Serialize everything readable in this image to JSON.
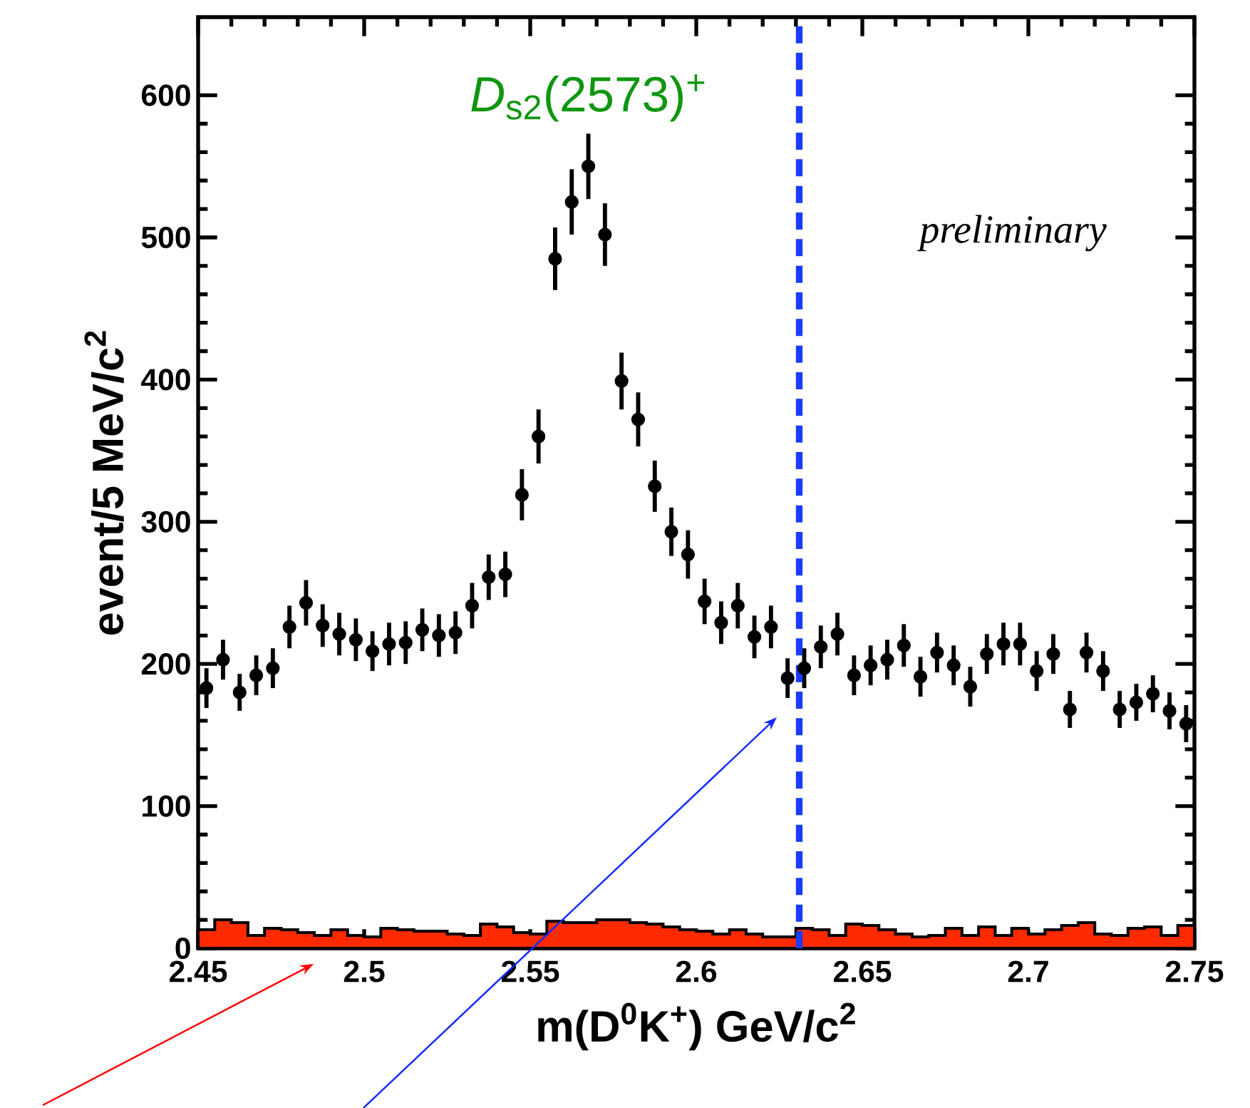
{
  "chart_data": {
    "type": "histogram",
    "xlabel": "m(D$^{0}$K$^{+}$) GeV/c$^{2}$",
    "ylabel": "event/5 MeV/c$^{2}$",
    "xlim": [
      2.45,
      2.75
    ],
    "ylim": [
      0,
      655
    ],
    "xticks": [
      2.45,
      2.5,
      2.55,
      2.6,
      2.65,
      2.7,
      2.75
    ],
    "yticks": [
      0,
      100,
      200,
      300,
      400,
      500,
      600
    ],
    "annotations": [
      {
        "text": "*D*$_{s2}$(2573)$^{+}$",
        "x": 2.5675,
        "y": 550
      },
      "preliminary"
    ],
    "ref_lines": [
      {
        "axis": "x",
        "value": 2.631,
        "color": "#1a3cff",
        "line_style": "dashed"
      }
    ],
    "bins": [
      2.45,
      2.455,
      2.46,
      2.465,
      2.47,
      2.475,
      2.48,
      2.485,
      2.49,
      2.495,
      2.5,
      2.505,
      2.51,
      2.515,
      2.52,
      2.525,
      2.53,
      2.535,
      2.54,
      2.545,
      2.55,
      2.555,
      2.56,
      2.565,
      2.57,
      2.575,
      2.58,
      2.585,
      2.59,
      2.595,
      2.6,
      2.605,
      2.61,
      2.615,
      2.62,
      2.625,
      2.63,
      2.635,
      2.64,
      2.645,
      2.65,
      2.655,
      2.66,
      2.665,
      2.67,
      2.675,
      2.68,
      2.685,
      2.69,
      2.695,
      2.7,
      2.705,
      2.71,
      2.715,
      2.72,
      2.725,
      2.73,
      2.735,
      2.74,
      2.745,
      2.75
    ],
    "series": [
      {
        "color": "#ff2a00",
        "values": [
          13,
          20,
          18,
          9,
          14,
          13,
          11,
          9,
          13,
          9,
          8,
          14,
          13,
          12,
          12,
          10,
          9,
          17,
          15,
          11,
          10,
          19,
          18,
          18,
          20,
          20,
          18,
          17,
          15,
          13,
          12,
          10,
          13,
          10,
          8,
          8,
          14,
          13,
          9,
          17,
          16,
          13,
          10,
          8,
          9,
          14,
          9,
          15,
          9,
          14,
          10,
          13,
          16,
          18,
          10,
          9,
          14,
          15,
          9,
          16
        ]
      },
      {
        "type": "scatter",
        "color": "#000000",
        "x": [
          2.4525,
          2.4575,
          2.4625,
          2.4675,
          2.4725,
          2.4775,
          2.4825,
          2.4875,
          2.4925,
          2.4975,
          2.5025,
          2.5075,
          2.5125,
          2.5175,
          2.5225,
          2.5275,
          2.5325,
          2.5375,
          2.5425,
          2.5475,
          2.5525,
          2.5575,
          2.5625,
          2.5675,
          2.5725,
          2.5775,
          2.5825,
          2.5875,
          2.5925,
          2.5975,
          2.6025,
          2.6075,
          2.6125,
          2.6175,
          2.6225,
          2.6275,
          2.6325,
          2.6375,
          2.6425,
          2.6475,
          2.6525,
          2.6575,
          2.6625,
          2.6675,
          2.6725,
          2.6775,
          2.6825,
          2.6875,
          2.6925,
          2.6975,
          2.7025,
          2.7075,
          2.7125,
          2.7175,
          2.7225,
          2.7275,
          2.7325,
          2.7375,
          2.7425,
          2.7475
        ],
        "values": [
          183,
          203,
          180,
          192,
          197,
          226,
          243,
          227,
          221,
          217,
          209,
          214,
          215,
          224,
          220,
          222,
          241,
          261,
          263,
          319,
          360,
          485,
          525,
          550,
          502,
          399,
          372,
          325,
          293,
          277,
          244,
          229,
          241,
          219,
          226,
          190,
          197,
          212,
          221,
          192,
          199,
          203,
          213,
          191,
          208,
          199,
          184,
          207,
          214,
          214,
          195,
          207,
          168,
          208,
          195,
          168,
          173,
          179,
          167,
          158
        ],
        "errors": [
          14,
          14,
          13,
          14,
          14,
          15,
          16,
          15,
          15,
          15,
          14,
          15,
          15,
          15,
          15,
          15,
          16,
          16,
          16,
          18,
          19,
          22,
          23,
          23,
          22,
          20,
          19,
          18,
          17,
          17,
          16,
          15,
          16,
          15,
          15,
          14,
          14,
          15,
          15,
          14,
          14,
          14,
          15,
          14,
          14,
          14,
          14,
          14,
          15,
          15,
          14,
          14,
          13,
          14,
          14,
          13,
          13,
          13,
          13,
          13
        ]
      }
    ]
  }
}
